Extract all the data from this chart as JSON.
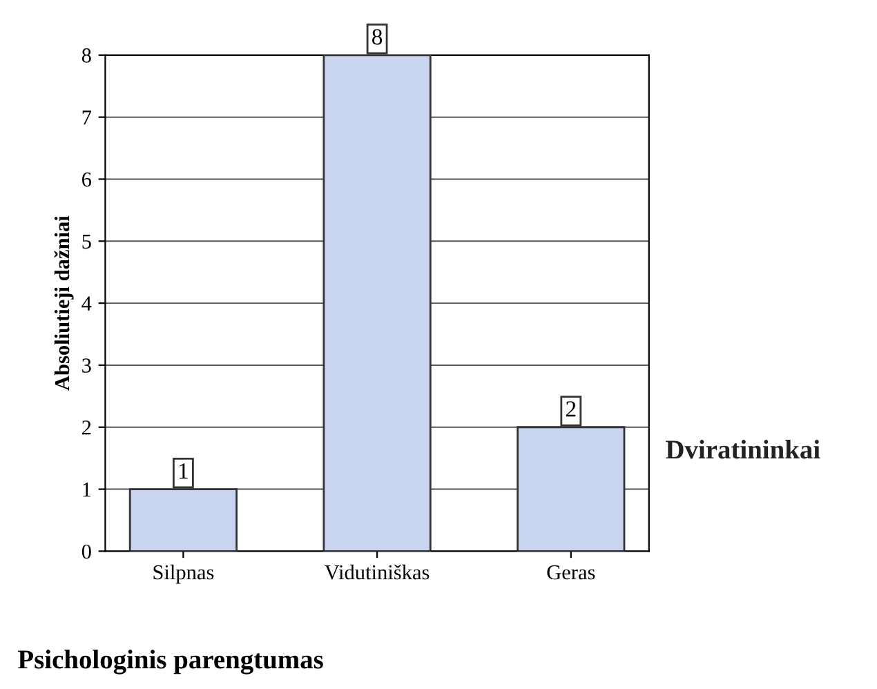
{
  "chart_data": {
    "type": "bar",
    "ylabel": "Absoliutieji dažniai",
    "xlabel": "Psichologinis parengtumas",
    "categories": [
      "Silpnas",
      "Vidutiniškas",
      "Geras"
    ],
    "series": [
      {
        "name": "Dviratininkai",
        "color": "#c9d5ee",
        "values": [
          1,
          8,
          2
        ]
      }
    ],
    "ylim": [
      0,
      8
    ],
    "yticks": [
      0,
      1,
      2,
      3,
      4,
      5,
      6,
      7,
      8
    ],
    "grid": "y",
    "data_labels": true
  }
}
